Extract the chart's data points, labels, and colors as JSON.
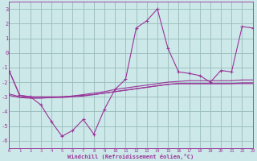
{
  "xlabel": "Windchill (Refroidissement éolien,°C)",
  "xlim": [
    0,
    23
  ],
  "ylim": [
    -6.5,
    3.5
  ],
  "yticks": [
    -6,
    -5,
    -4,
    -3,
    -2,
    -1,
    0,
    1,
    2,
    3
  ],
  "xticks": [
    0,
    1,
    2,
    3,
    4,
    5,
    6,
    7,
    8,
    9,
    10,
    11,
    12,
    13,
    14,
    15,
    16,
    17,
    18,
    19,
    20,
    21,
    22,
    23
  ],
  "bg_color": "#cce8e8",
  "line_color": "#993399",
  "grid_color": "#99bbbb",
  "marker_series_x": [
    0,
    1,
    2,
    3,
    4,
    5,
    6,
    7,
    8,
    9,
    10,
    11,
    12,
    13,
    14,
    15,
    16,
    17,
    18,
    19,
    20,
    21,
    22,
    23
  ],
  "marker_series_y": [
    -1.2,
    -2.9,
    -3.0,
    -3.55,
    -4.7,
    -5.7,
    -5.3,
    -4.55,
    -5.55,
    -3.85,
    -2.5,
    -1.8,
    1.7,
    2.2,
    3.0,
    0.3,
    -1.3,
    -1.4,
    -1.55,
    -2.0,
    -1.2,
    -1.3,
    1.8,
    1.7
  ],
  "smooth1_x": [
    0,
    1,
    2,
    3,
    4,
    5,
    6,
    7,
    8,
    9,
    10,
    11,
    12,
    13,
    14,
    15,
    16,
    17,
    18,
    19,
    20,
    21,
    22,
    23
  ],
  "smooth1_y": [
    -1.2,
    -2.9,
    -3.0,
    -3.0,
    -3.0,
    -3.0,
    -2.95,
    -2.85,
    -2.75,
    -2.65,
    -2.5,
    -2.4,
    -2.3,
    -2.2,
    -2.1,
    -2.0,
    -1.95,
    -1.9,
    -1.9,
    -1.9,
    -1.9,
    -1.9,
    -1.85,
    -1.85
  ],
  "smooth2_x": [
    0,
    1,
    2,
    3,
    4,
    5,
    6,
    7,
    8,
    9,
    10,
    11,
    12,
    13,
    14,
    15,
    16,
    17,
    18,
    19,
    20,
    21,
    22,
    23
  ],
  "smooth2_y": [
    -2.8,
    -3.0,
    -3.05,
    -3.05,
    -3.05,
    -3.05,
    -3.0,
    -2.95,
    -2.85,
    -2.75,
    -2.65,
    -2.55,
    -2.45,
    -2.35,
    -2.25,
    -2.15,
    -2.1,
    -2.1,
    -2.1,
    -2.1,
    -2.1,
    -2.1,
    -2.05,
    -2.05
  ],
  "smooth3_x": [
    0,
    1,
    2,
    3,
    4,
    5,
    6,
    7,
    8,
    9,
    10,
    11,
    12,
    13,
    14,
    15,
    16,
    17,
    18,
    19,
    20,
    21,
    22,
    23
  ],
  "smooth3_y": [
    -2.9,
    -3.05,
    -3.1,
    -3.1,
    -3.05,
    -3.0,
    -2.95,
    -2.9,
    -2.85,
    -2.75,
    -2.65,
    -2.55,
    -2.45,
    -2.35,
    -2.25,
    -2.15,
    -2.1,
    -2.1,
    -2.1,
    -2.1,
    -2.1,
    -2.1,
    -2.1,
    -2.1
  ]
}
